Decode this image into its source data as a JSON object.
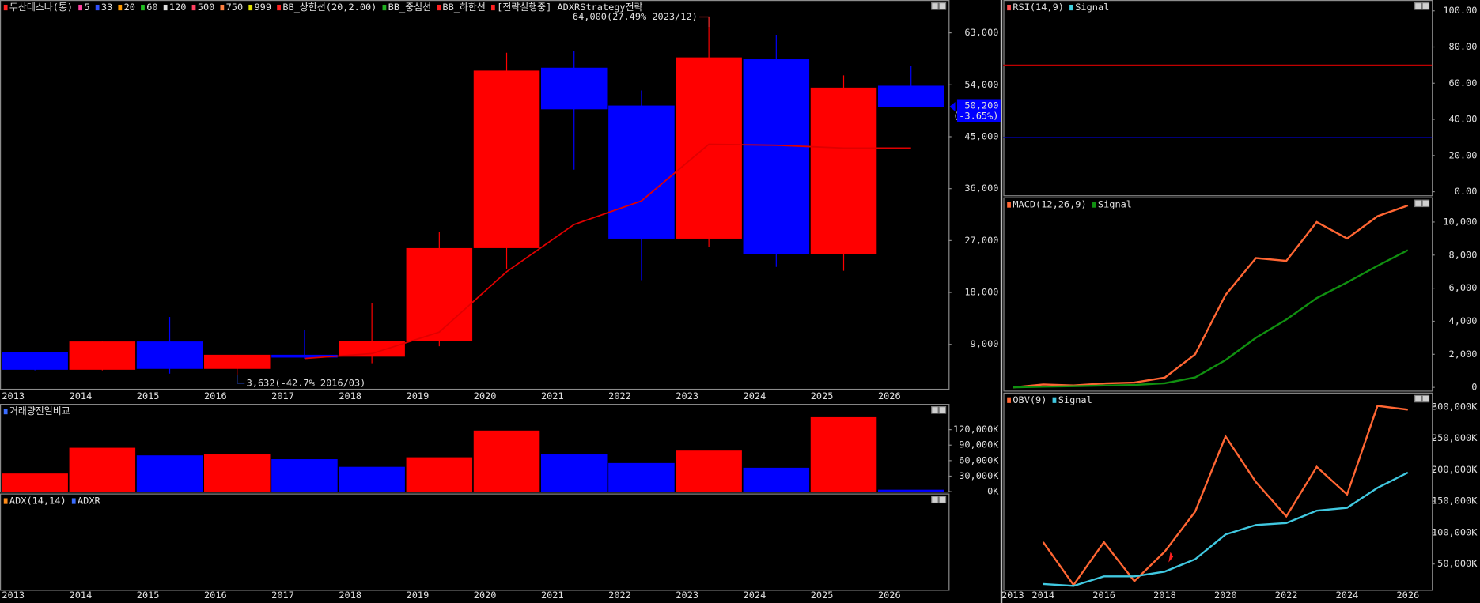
{
  "chart_data": [
    {
      "type": "candlestick",
      "legend_items": [
        {
          "name": "두산테스나(통)",
          "color": "#ff2020"
        },
        {
          "name": "5",
          "color": "#ff40a0"
        },
        {
          "name": "33",
          "color": "#3050ff"
        },
        {
          "name": "20",
          "color": "#ff9a00"
        },
        {
          "name": "60",
          "color": "#20c020"
        },
        {
          "name": "120",
          "color": "#e0e0e0"
        },
        {
          "name": "500",
          "color": "#ff4060"
        },
        {
          "name": "750",
          "color": "#ff8040"
        },
        {
          "name": "999",
          "color": "#e0e000"
        },
        {
          "name": "BB_상한선(20,2.00)",
          "color": "#ff2020"
        },
        {
          "name": "BB_중심선",
          "color": "#20b020"
        },
        {
          "name": "BB_하한선",
          "color": "#ff2020"
        },
        {
          "name": "[전략실행중] ADXRStrategy전략",
          "color": "#ff2020"
        }
      ],
      "categories": [
        "2013",
        "2014",
        "2015",
        "2016",
        "2017",
        "2018",
        "2019",
        "2020",
        "2021",
        "2022",
        "2023",
        "2024",
        "2025",
        "2026"
      ],
      "open": [
        7700,
        4600,
        9500,
        4750,
        7200,
        6870,
        9650,
        25690,
        56950,
        50400,
        27330,
        58420,
        24710,
        53840
      ],
      "high": [
        7700,
        9500,
        13750,
        7200,
        11450,
        16200,
        28470,
        59560,
        59890,
        53020,
        64000,
        62670,
        55640,
        57270
      ],
      "low": [
        4500,
        4500,
        3930,
        3632,
        6500,
        5730,
        8670,
        22090,
        39270,
        20130,
        25850,
        22420,
        21760,
        50200
      ],
      "close": [
        4600,
        9500,
        4750,
        7200,
        6710,
        9650,
        25690,
        56450,
        49750,
        27330,
        58750,
        24710,
        53510,
        50200
      ],
      "up_color": "#ff0000",
      "down_color": "#0000ff",
      "ma": {
        "color": "#e00000",
        "values": [
          null,
          null,
          null,
          null,
          6550,
          7400,
          11130,
          21600,
          29780,
          33870,
          43690,
          43530,
          43030,
          43030
        ]
      },
      "annotations": [
        {
          "text": "64,000(27.49% 2023/12)",
          "color": "#ff3030"
        },
        {
          "text": "3,632(-42.7% 2016/03)",
          "color": "#3060ff"
        }
      ],
      "last_price_label": "50,200",
      "change_label": "(-3.65%)",
      "ylim": [
        1300,
        68700
      ],
      "yticks": [
        {
          "value": 9000,
          "label": "9,000"
        },
        {
          "value": 18000,
          "label": "18,000"
        },
        {
          "value": 27000,
          "label": "27,000"
        },
        {
          "value": 36000,
          "label": "36,000"
        },
        {
          "value": 45000,
          "label": "45,000"
        },
        {
          "value": 54000,
          "label": "54,000"
        },
        {
          "value": 63000,
          "label": "63,000"
        }
      ]
    },
    {
      "type": "bar",
      "title": "거래량전일비교",
      "title_color": "#3a6cff",
      "categories": [
        "2013",
        "2014",
        "2015",
        "2016",
        "2017",
        "2018",
        "2019",
        "2020",
        "2021",
        "2022",
        "2023",
        "2024",
        "2025",
        "2026"
      ],
      "values": [
        35100,
        84900,
        70200,
        72000,
        62800,
        48000,
        66500,
        118200,
        72000,
        55400,
        79400,
        46200,
        144000,
        3700
      ],
      "colors": [
        "#ff0000",
        "#ff0000",
        "#0000ff",
        "#ff0000",
        "#0000ff",
        "#0000ff",
        "#ff0000",
        "#ff0000",
        "#0000ff",
        "#0000ff",
        "#ff0000",
        "#0000ff",
        "#ff0000",
        "#0000ff"
      ],
      "ylim": [
        0,
        169800
      ],
      "yticks": [
        {
          "value": 0,
          "label": "0K"
        },
        {
          "value": 30000,
          "label": "30,000K"
        },
        {
          "value": 60000,
          "label": "60,000K"
        },
        {
          "value": 90000,
          "label": "90,000K"
        },
        {
          "value": 120000,
          "label": "120,000K"
        }
      ]
    },
    {
      "type": "line",
      "categories": [
        "2013",
        "2014",
        "2015",
        "2016",
        "2017",
        "2018",
        "2019",
        "2020",
        "2021",
        "2022",
        "2023",
        "2024",
        "2025",
        "2026"
      ],
      "series": [
        {
          "name": "ADX(14,14)",
          "color": "#ff8c1a"
        },
        {
          "name": "ADXR",
          "color": "#3a6cff"
        }
      ]
    },
    {
      "type": "line",
      "series": [
        {
          "name": "RSI(14,9)",
          "color": "#ff5050"
        },
        {
          "name": "Signal",
          "color": "#40d0e0"
        }
      ],
      "reference_lines": [
        {
          "value": 70,
          "color": "#c00000"
        },
        {
          "value": 30,
          "color": "#0000c0"
        }
      ],
      "ylim": [
        -2,
        106
      ],
      "yticks": [
        {
          "value": 0,
          "label": "0.00"
        },
        {
          "value": 20,
          "label": "20.00"
        },
        {
          "value": 40,
          "label": "40.00"
        },
        {
          "value": 60,
          "label": "60.00"
        },
        {
          "value": 80,
          "label": "80.00"
        },
        {
          "value": 100,
          "label": "100.00"
        }
      ]
    },
    {
      "type": "line",
      "series": [
        {
          "name": "MACD(12,26,9)",
          "color": "#ff6633",
          "values": [
            0,
            180,
            120,
            240,
            290,
            590,
            2000,
            5590,
            7820,
            7650,
            10000,
            9000,
            10350,
            11000
          ]
        },
        {
          "name": "Signal",
          "color": "#109010",
          "values": [
            0,
            40,
            70,
            110,
            150,
            250,
            600,
            1650,
            3000,
            4100,
            5400,
            6350,
            7350,
            8300
          ]
        }
      ],
      "ylim": [
        -200,
        11500
      ],
      "yticks": [
        0,
        {
          "value": 2000,
          "label": "2,000"
        },
        {
          "value": 4000,
          "label": "4,000"
        },
        {
          "value": 6000,
          "label": "6,000"
        },
        {
          "value": 8000,
          "label": "8,000"
        },
        {
          "value": 10000,
          "label": "10,000"
        }
      ]
    },
    {
      "type": "line",
      "categories": [
        "2013",
        "2014",
        null,
        "2016",
        null,
        "2018",
        null,
        "2020",
        null,
        "2022",
        null,
        "2024",
        null,
        "2026"
      ],
      "series": [
        {
          "name": "OBV(9)",
          "color": "#ff6633",
          "values": [
            null,
            84800,
            16700,
            84800,
            22700,
            69700,
            133300,
            253000,
            180300,
            125800,
            204500,
            160600,
            301500,
            295500
          ]
        },
        {
          "name": "Signal",
          "color": "#40c8e0",
          "values": [
            null,
            18200,
            15200,
            30300,
            30300,
            37900,
            57600,
            97000,
            112100,
            115200,
            134800,
            139400,
            171200,
            195500
          ]
        }
      ],
      "ylim": [
        9000,
        322700
      ],
      "yticks": [
        {
          "value": 50000,
          "label": "50,000K"
        },
        {
          "value": 100000,
          "label": "100,000K"
        },
        {
          "value": 150000,
          "label": "150,000K"
        },
        {
          "value": 200000,
          "label": "200,000K"
        },
        {
          "value": 250000,
          "label": "250,000K"
        },
        {
          "value": 300000,
          "label": "300,000K"
        }
      ]
    }
  ]
}
